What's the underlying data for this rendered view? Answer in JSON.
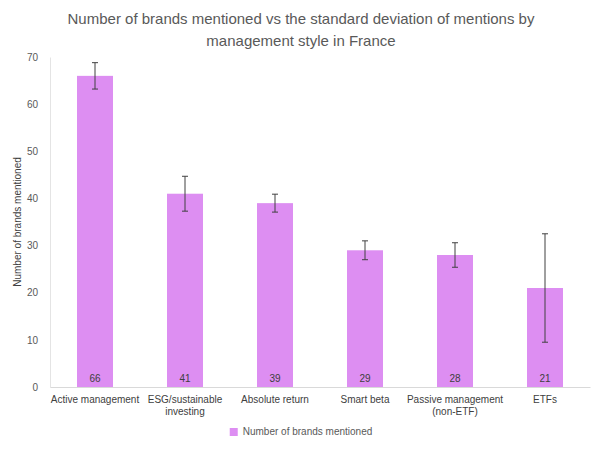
{
  "chart_data": {
    "type": "bar",
    "title": "Number of brands mentioned vs the standard deviation of mentions by management style in France",
    "y_label": "Number of brands mentioned",
    "categories": [
      "Active management",
      "ESG/sustainable investing",
      "Absolute return",
      "Smart beta",
      "Passive management (non-ETF)",
      "ETFs"
    ],
    "series": [
      {
        "name": "Number of brands mentioned",
        "color": "#dd8ef2",
        "values": [
          66,
          41,
          39,
          29,
          28,
          21
        ],
        "error": [
          2.8,
          3.7,
          1.9,
          2,
          2.6,
          11.5
        ]
      }
    ],
    "ylim": [
      0,
      70
    ],
    "yticks": [
      0,
      10,
      20,
      30,
      40,
      50,
      60,
      70
    ],
    "grid": false,
    "legend": "bottom",
    "data_labels": true
  }
}
